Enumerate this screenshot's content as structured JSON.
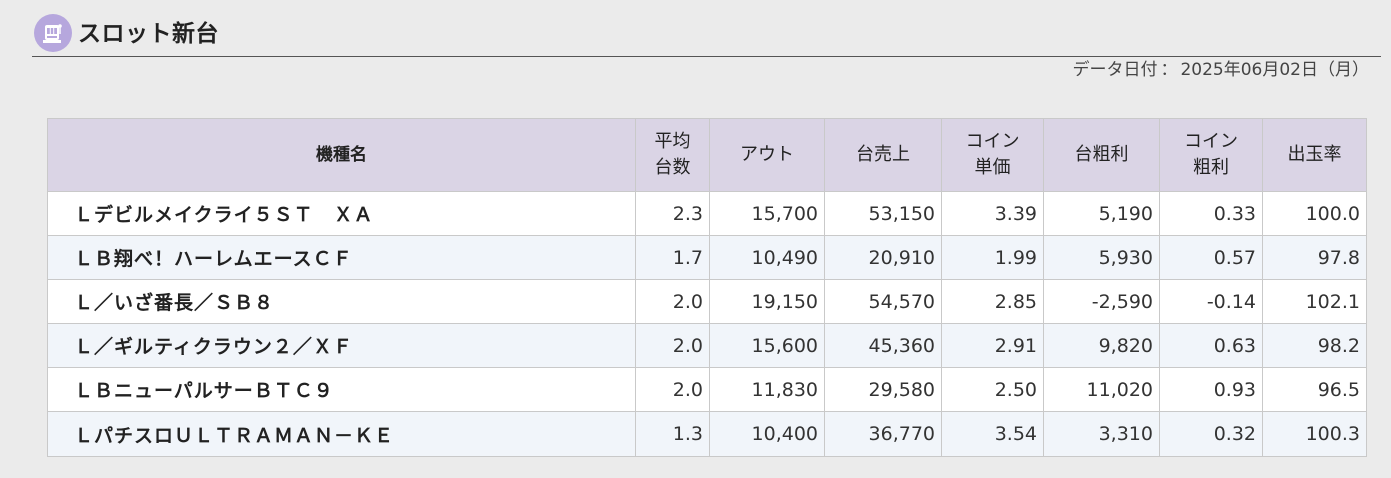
{
  "section": {
    "title": "スロット新台",
    "icon": "slot-machine-icon",
    "icon_color": "#b6a7dd"
  },
  "data_date": {
    "label": "データ日付",
    "separator": "：",
    "value": "2025年06月02日（月）"
  },
  "table": {
    "headers": {
      "name": "機種名",
      "avg_units_line1": "平均",
      "avg_units_line2": "台数",
      "out": "アウト",
      "unit_sales": "台売上",
      "coin_price_line1": "コイン",
      "coin_price_line2": "単価",
      "unit_gross_profit": "台粗利",
      "coin_gross_line1": "コイン",
      "coin_gross_line2": "粗利",
      "payout_rate": "出玉率"
    },
    "rows": [
      {
        "name": "Ｌデビルメイクライ５ＳＴ　ＸＡ",
        "avg_units": "2.3",
        "out": "15,700",
        "unit_sales": "53,150",
        "coin_price": "3.39",
        "unit_gross_profit": "5,190",
        "coin_gross": "0.33",
        "payout_rate": "100.0"
      },
      {
        "name": "ＬＢ翔べ！ハーレムエースＣＦ",
        "avg_units": "1.7",
        "out": "10,490",
        "unit_sales": "20,910",
        "coin_price": "1.99",
        "unit_gross_profit": "5,930",
        "coin_gross": "0.57",
        "payout_rate": "97.8"
      },
      {
        "name": "Ｌ／いざ番長／ＳＢ８",
        "avg_units": "2.0",
        "out": "19,150",
        "unit_sales": "54,570",
        "coin_price": "2.85",
        "unit_gross_profit": "-2,590",
        "coin_gross": "-0.14",
        "payout_rate": "102.1"
      },
      {
        "name": "Ｌ／ギルティクラウン２／ＸＦ",
        "avg_units": "2.0",
        "out": "15,600",
        "unit_sales": "45,360",
        "coin_price": "2.91",
        "unit_gross_profit": "9,820",
        "coin_gross": "0.63",
        "payout_rate": "98.2"
      },
      {
        "name": "ＬＢニューパルサーＢＴＣ９",
        "avg_units": "2.0",
        "out": "11,830",
        "unit_sales": "29,580",
        "coin_price": "2.50",
        "unit_gross_profit": "11,020",
        "coin_gross": "0.93",
        "payout_rate": "96.5"
      },
      {
        "name": "ＬパチスロＵＬＴＲＡＭＡＮ－ＫＥ",
        "avg_units": "1.3",
        "out": "10,400",
        "unit_sales": "36,770",
        "coin_price": "3.54",
        "unit_gross_profit": "3,310",
        "coin_gross": "0.32",
        "payout_rate": "100.3"
      }
    ]
  }
}
